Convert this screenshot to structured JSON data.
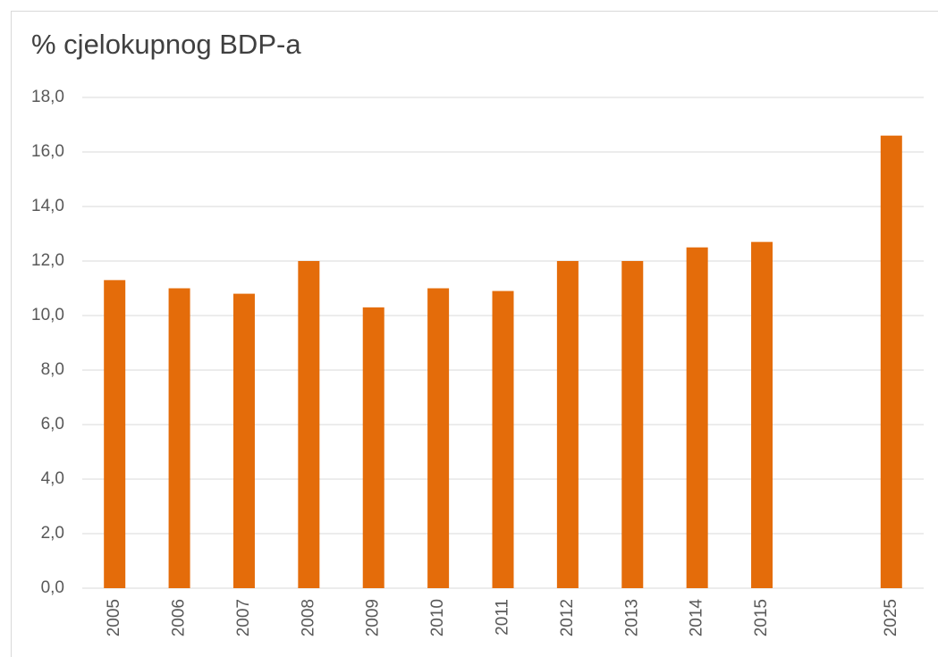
{
  "chart_data": {
    "type": "bar",
    "title": "% cjelokupnog BDP-a",
    "categories": [
      "2005",
      "2006",
      "2007",
      "2008",
      "2009",
      "2010",
      "2011",
      "2012",
      "2013",
      "2014",
      "2015",
      null,
      "2025"
    ],
    "values": [
      11.3,
      11.0,
      10.8,
      12.0,
      10.3,
      11.0,
      10.9,
      12.0,
      12.0,
      12.5,
      12.7,
      null,
      16.6
    ],
    "color": "#e46c0a",
    "ylim": [
      0,
      18
    ],
    "yticks": [
      {
        "value": 0,
        "label": "0,0"
      },
      {
        "value": 2,
        "label": "2,0"
      },
      {
        "value": 4,
        "label": "4,0"
      },
      {
        "value": 6,
        "label": "6,0"
      },
      {
        "value": 8,
        "label": "8,0"
      },
      {
        "value": 10,
        "label": "10,0"
      },
      {
        "value": 12,
        "label": "12,0"
      },
      {
        "value": 14,
        "label": "14,0"
      },
      {
        "value": 16,
        "label": "16,0"
      },
      {
        "value": 18,
        "label": "18,0"
      }
    ],
    "grid": true
  }
}
